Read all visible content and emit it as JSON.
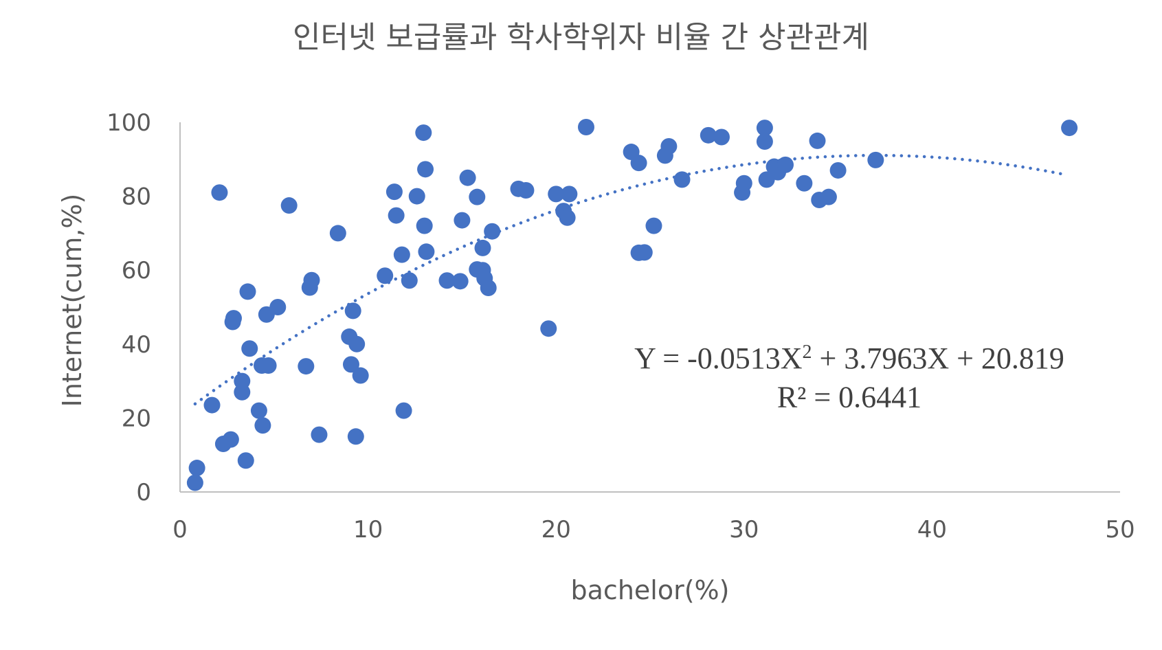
{
  "chart_data": {
    "type": "scatter",
    "title": "인터넷 보급률과 학사학위자 비율 간 상관관계",
    "xlabel": "bachelor(%)",
    "ylabel": "Internet(cum,%)",
    "xlim": [
      0,
      50
    ],
    "ylim": [
      0,
      100
    ],
    "xticks": [
      "0",
      "10",
      "20",
      "30",
      "40",
      "50"
    ],
    "yticks": [
      "0",
      "20",
      "40",
      "60",
      "80",
      "100"
    ],
    "grid": false,
    "legend": "none",
    "colors": {
      "points": "#4472C4",
      "trendline": "#4472C4",
      "axis": "#bfbfbf"
    },
    "trendline": {
      "kind": "polynomial-2",
      "coefficients": {
        "a": -0.0513,
        "b": 3.7963,
        "c": 20.819
      },
      "x_range": [
        0.8,
        47.2
      ],
      "style": "dotted"
    },
    "equation": {
      "line1_prefix": "Y = -0.0513X",
      "line1_sup": "2",
      "line1_suffix": " + 3.7963X + 20.819",
      "line2": "R² = 0.6441"
    },
    "points": [
      {
        "x": 0.8,
        "y": 2.5
      },
      {
        "x": 0.9,
        "y": 6.5
      },
      {
        "x": 1.7,
        "y": 23.5
      },
      {
        "x": 2.1,
        "y": 81
      },
      {
        "x": 2.3,
        "y": 13
      },
      {
        "x": 2.7,
        "y": 14.2
      },
      {
        "x": 2.8,
        "y": 46
      },
      {
        "x": 2.85,
        "y": 47
      },
      {
        "x": 3.3,
        "y": 30
      },
      {
        "x": 3.3,
        "y": 27
      },
      {
        "x": 3.5,
        "y": 8.5
      },
      {
        "x": 3.6,
        "y": 54.2
      },
      {
        "x": 3.7,
        "y": 38.8
      },
      {
        "x": 4.2,
        "y": 22
      },
      {
        "x": 4.35,
        "y": 34.2
      },
      {
        "x": 4.4,
        "y": 18
      },
      {
        "x": 4.6,
        "y": 48
      },
      {
        "x": 4.7,
        "y": 34.2
      },
      {
        "x": 5.2,
        "y": 50
      },
      {
        "x": 5.8,
        "y": 77.5
      },
      {
        "x": 6.7,
        "y": 34
      },
      {
        "x": 6.9,
        "y": 55.3
      },
      {
        "x": 7.0,
        "y": 57.3
      },
      {
        "x": 7.4,
        "y": 15.5
      },
      {
        "x": 8.4,
        "y": 70
      },
      {
        "x": 9.0,
        "y": 42
      },
      {
        "x": 9.1,
        "y": 34.5
      },
      {
        "x": 9.2,
        "y": 49
      },
      {
        "x": 9.35,
        "y": 15
      },
      {
        "x": 9.4,
        "y": 40
      },
      {
        "x": 9.6,
        "y": 31.5
      },
      {
        "x": 10.9,
        "y": 58.5
      },
      {
        "x": 11.4,
        "y": 81.2
      },
      {
        "x": 11.5,
        "y": 74.8
      },
      {
        "x": 11.8,
        "y": 64.2
      },
      {
        "x": 11.9,
        "y": 22
      },
      {
        "x": 12.2,
        "y": 57.2
      },
      {
        "x": 12.6,
        "y": 80
      },
      {
        "x": 12.95,
        "y": 97.2
      },
      {
        "x": 13.0,
        "y": 72
      },
      {
        "x": 13.05,
        "y": 87.3
      },
      {
        "x": 13.1,
        "y": 65
      },
      {
        "x": 14.2,
        "y": 57.2
      },
      {
        "x": 14.9,
        "y": 57
      },
      {
        "x": 15.0,
        "y": 73.5
      },
      {
        "x": 15.3,
        "y": 85
      },
      {
        "x": 15.8,
        "y": 79.8
      },
      {
        "x": 15.8,
        "y": 60.2
      },
      {
        "x": 16.1,
        "y": 66
      },
      {
        "x": 16.1,
        "y": 60
      },
      {
        "x": 16.2,
        "y": 57.8
      },
      {
        "x": 16.4,
        "y": 55.2
      },
      {
        "x": 16.6,
        "y": 70.5
      },
      {
        "x": 18.0,
        "y": 82
      },
      {
        "x": 18.4,
        "y": 81.6
      },
      {
        "x": 19.6,
        "y": 44.2
      },
      {
        "x": 20.0,
        "y": 80.6
      },
      {
        "x": 20.4,
        "y": 76
      },
      {
        "x": 20.6,
        "y": 74.2
      },
      {
        "x": 20.7,
        "y": 80.6
      },
      {
        "x": 21.6,
        "y": 98.7
      },
      {
        "x": 24.0,
        "y": 92
      },
      {
        "x": 24.4,
        "y": 89
      },
      {
        "x": 24.4,
        "y": 64.7
      },
      {
        "x": 24.7,
        "y": 64.8
      },
      {
        "x": 25.2,
        "y": 72
      },
      {
        "x": 25.8,
        "y": 91
      },
      {
        "x": 26.0,
        "y": 93.5
      },
      {
        "x": 26.7,
        "y": 84.5
      },
      {
        "x": 28.1,
        "y": 96.5
      },
      {
        "x": 28.8,
        "y": 96
      },
      {
        "x": 29.9,
        "y": 81
      },
      {
        "x": 30.0,
        "y": 83.5
      },
      {
        "x": 31.1,
        "y": 98.5
      },
      {
        "x": 31.1,
        "y": 94.8
      },
      {
        "x": 31.2,
        "y": 84.5
      },
      {
        "x": 31.6,
        "y": 88
      },
      {
        "x": 31.8,
        "y": 86.5
      },
      {
        "x": 32.2,
        "y": 88.5
      },
      {
        "x": 33.2,
        "y": 83.5
      },
      {
        "x": 33.9,
        "y": 95
      },
      {
        "x": 34.0,
        "y": 79
      },
      {
        "x": 34.5,
        "y": 79.8
      },
      {
        "x": 35.0,
        "y": 87
      },
      {
        "x": 37.0,
        "y": 89.8
      },
      {
        "x": 47.3,
        "y": 98.5
      }
    ]
  }
}
